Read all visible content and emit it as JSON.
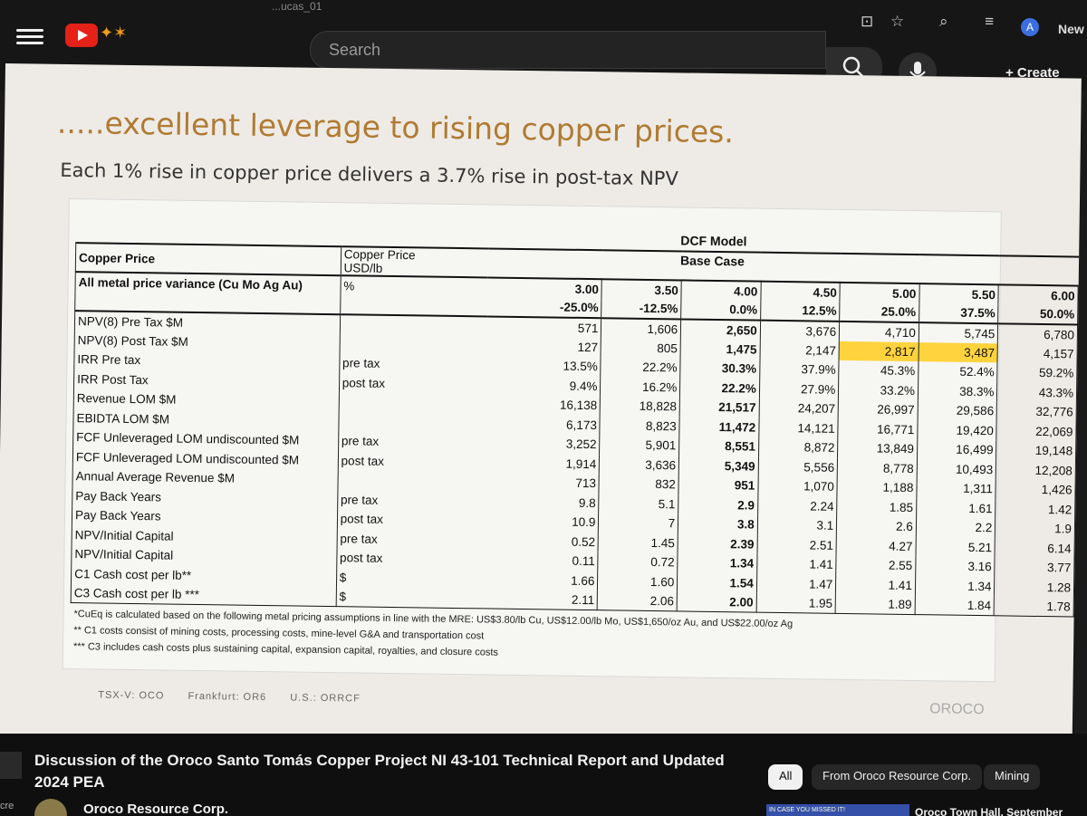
{
  "browser": {
    "tab_fragment": "...ucas_01",
    "avatar_letter": "A",
    "new_label": "New"
  },
  "youtube": {
    "search_placeholder": "Search",
    "create_label": "+ Create"
  },
  "slide": {
    "title": ".....excellent leverage to rising copper prices.",
    "subtitle": "Each 1% rise in copper price delivers a 3.7% rise in post-tax NPV",
    "dcf_header": [
      "DCF Model",
      "Base Case"
    ],
    "copper_price_header": "Copper Price",
    "copper_price_units": [
      "Copper Price",
      "USD/lb"
    ],
    "variance_label": "All metal price variance (Cu Mo Ag Au)",
    "variance_unit": "%",
    "price_columns": [
      "3.00",
      "3.50",
      "4.00",
      "4.50",
      "5.00",
      "5.50",
      "6.00"
    ],
    "variance_columns": [
      "-25.0%",
      "-12.5%",
      "0.0%",
      "12.5%",
      "25.0%",
      "37.5%",
      "50.0%"
    ],
    "rows": [
      {
        "label": "NPV(8) Pre Tax $M",
        "unit": "",
        "dollar": "$",
        "values": [
          "571",
          "1,606",
          "2,650",
          "3,676",
          "4,710",
          "5,745",
          "6,780"
        ]
      },
      {
        "label": "NPV(8) Post Tax $M",
        "unit": "",
        "dollar": "$",
        "values": [
          "127",
          "805",
          "1,475",
          "2,147",
          "2,817",
          "3,487",
          "4,157"
        ]
      },
      {
        "label": "IRR Pre tax",
        "unit": "pre tax",
        "dollar": "",
        "values": [
          "13.5%",
          "22.2%",
          "30.3%",
          "37.9%",
          "45.3%",
          "52.4%",
          "59.2%"
        ]
      },
      {
        "label": "IRR Post Tax",
        "unit": "post tax",
        "dollar": "",
        "values": [
          "9.4%",
          "16.2%",
          "22.2%",
          "27.9%",
          "33.2%",
          "38.3%",
          "43.3%"
        ]
      },
      {
        "label": "Revenue LOM $M",
        "unit": "",
        "dollar": "$",
        "values": [
          "16,138",
          "18,828",
          "21,517",
          "24,207",
          "26,997",
          "29,586",
          "32,776"
        ]
      },
      {
        "label": "EBIDTA LOM $M",
        "unit": "",
        "dollar": "$",
        "values": [
          "6,173",
          "8,823",
          "11,472",
          "14,121",
          "16,771",
          "19,420",
          "22,069"
        ]
      },
      {
        "label": "FCF Unleveraged LOM undiscounted $M",
        "unit": "pre tax",
        "dollar": "$",
        "values": [
          "3,252",
          "5,901",
          "8,551",
          "8,872",
          "13,849",
          "16,499",
          "19,148"
        ]
      },
      {
        "label": "FCF Unleveraged LOM undiscounted $M",
        "unit": "post tax",
        "dollar": "$",
        "values": [
          "1,914",
          "3,636",
          "5,349",
          "5,556",
          "8,778",
          "10,493",
          "12,208"
        ]
      },
      {
        "label": "Annual Average Revenue $M",
        "unit": "",
        "dollar": "$",
        "values": [
          "713",
          "832",
          "951",
          "1,070",
          "1,188",
          "1,311",
          "1,426"
        ]
      },
      {
        "label": "Pay Back Years",
        "unit": "pre tax",
        "dollar": "",
        "values": [
          "9.8",
          "5.1",
          "2.9",
          "2.24",
          "1.85",
          "1.61",
          "1.42"
        ]
      },
      {
        "label": "Pay Back Years",
        "unit": "post tax",
        "dollar": "",
        "values": [
          "10.9",
          "7",
          "3.8",
          "3.1",
          "2.6",
          "2.2",
          "1.9"
        ]
      },
      {
        "label": "NPV/Initial Capital",
        "unit": "pre tax",
        "dollar": "",
        "values": [
          "0.52",
          "1.45",
          "2.39",
          "2.51",
          "4.27",
          "5.21",
          "6.14"
        ]
      },
      {
        "label": "NPV/Initial Capital",
        "unit": "post tax",
        "dollar": "",
        "values": [
          "0.11",
          "0.72",
          "1.34",
          "1.41",
          "2.55",
          "3.16",
          "3.77"
        ]
      },
      {
        "label": "C1 Cash cost per lb**",
        "unit": "$",
        "dollar": "$",
        "values": [
          "1.66",
          "1.60",
          "1.54",
          "1.47",
          "1.41",
          "1.34",
          "1.28"
        ]
      },
      {
        "label": "C3 Cash cost per lb ***",
        "unit": "$",
        "dollar": "$",
        "values": [
          "2.11",
          "2.06",
          "2.00",
          "1.95",
          "1.89",
          "1.84",
          "1.78"
        ]
      }
    ],
    "highlighted_cells": [
      "2,817",
      "3,487"
    ],
    "notes": [
      "*CuEq is calculated based on the following metal pricing assumptions in line with the MRE: US$3.80/lb Cu, US$12.00/lb Mo, US$1,650/oz Au, and US$22.00/oz Ag",
      "** C1 costs consist of mining costs, processing costs, mine-level G&A and transportation cost",
      "*** C3 includes cash costs plus sustaining capital, expansion capital, royalties, and closure costs"
    ],
    "tickers": [
      "TSX-V: OCO",
      "Frankfurt: OR6",
      "U.S.: ORRCF"
    ],
    "brand": "OROCO"
  },
  "video": {
    "title": "Discussion of the Oroco Santo Tomás Copper Project NI 43-101 Technical Report and Updated 2024 PEA",
    "channel": "Oroco Resource Corp.",
    "chips": [
      "All",
      "From Oroco Resource Corp.",
      "Mining"
    ],
    "related_title": "Oroco Town Hall, September",
    "related_thumb_text": "IN CASE YOU MISSED IT!",
    "left_text": "cre"
  }
}
